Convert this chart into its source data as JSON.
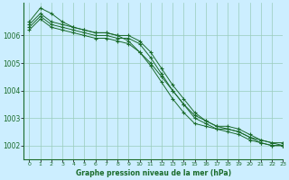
{
  "title": "Graphe pression niveau de la mer (hPa)",
  "background_color": "#cceeff",
  "plot_bg_color": "#cceeff",
  "grid_color": "#99ccbb",
  "line_color": "#1a6b2a",
  "xlim": [
    -0.5,
    23
  ],
  "ylim": [
    1001.5,
    1007.2
  ],
  "yticks": [
    1002,
    1003,
    1004,
    1005,
    1006
  ],
  "xtick_labels": [
    "0",
    "1",
    "2",
    "3",
    "4",
    "5",
    "6",
    "7",
    "8",
    "9",
    "10",
    "11",
    "12",
    "13",
    "14",
    "15",
    "16",
    "17",
    "18",
    "19",
    "20",
    "21",
    "22",
    "23"
  ],
  "series": [
    [
      1006.5,
      1007.0,
      1006.8,
      1006.5,
      1006.3,
      1006.2,
      1006.1,
      1006.1,
      1006.0,
      1005.8,
      1005.4,
      1005.0,
      1004.5,
      1004.0,
      1003.5,
      1003.1,
      1002.9,
      1002.7,
      1002.6,
      1002.5,
      1002.3,
      1002.2,
      1002.1,
      1002.1
    ],
    [
      1006.4,
      1006.8,
      1006.5,
      1006.4,
      1006.3,
      1006.2,
      1006.1,
      1006.1,
      1006.0,
      1006.0,
      1005.8,
      1005.4,
      1004.8,
      1004.2,
      1003.7,
      1003.2,
      1002.9,
      1002.7,
      1002.7,
      1002.6,
      1002.4,
      1002.2,
      1002.1,
      1002.0
    ],
    [
      1006.3,
      1006.7,
      1006.4,
      1006.3,
      1006.2,
      1006.1,
      1006.0,
      1006.0,
      1005.9,
      1005.9,
      1005.7,
      1005.2,
      1004.6,
      1004.0,
      1003.5,
      1003.0,
      1002.8,
      1002.6,
      1002.6,
      1002.5,
      1002.3,
      1002.1,
      1002.0,
      1002.0
    ],
    [
      1006.2,
      1006.6,
      1006.3,
      1006.2,
      1006.1,
      1006.0,
      1005.9,
      1005.9,
      1005.8,
      1005.7,
      1005.4,
      1004.9,
      1004.3,
      1003.7,
      1003.2,
      1002.8,
      1002.7,
      1002.6,
      1002.5,
      1002.4,
      1002.2,
      1002.1,
      1002.0,
      1002.0
    ]
  ]
}
